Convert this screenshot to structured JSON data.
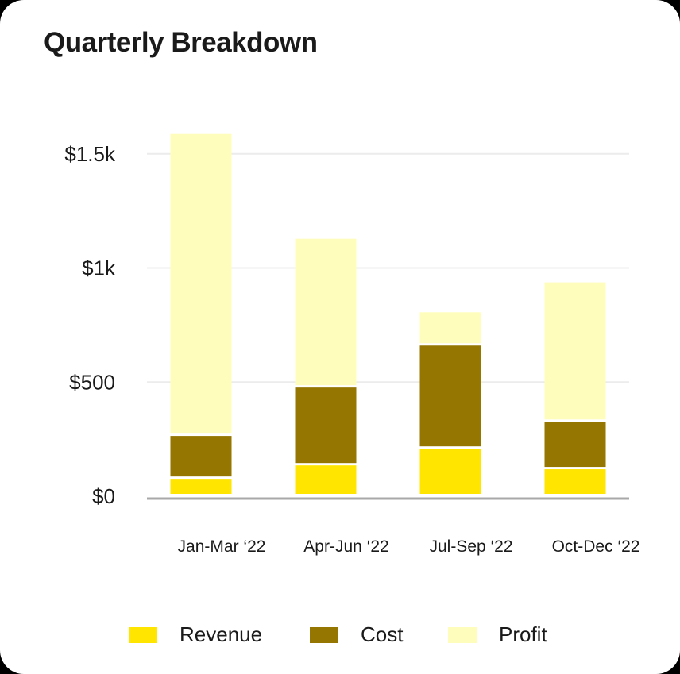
{
  "chart_data": {
    "type": "bar",
    "stacked": true,
    "title": "Quarterly Breakdown",
    "categories": [
      "Jan-Mar ‘22",
      "Apr-Jun ‘22",
      "Jul-Sep ‘22",
      "Oct-Dec ‘22"
    ],
    "series": [
      {
        "name": "Revenue",
        "color": "#FFE500",
        "values": [
          76,
          135,
          208,
          118
        ]
      },
      {
        "name": "Cost",
        "color": "#947600",
        "values": [
          188,
          341,
          452,
          208
        ]
      },
      {
        "name": "Profit",
        "color": "#FFFDBB",
        "values": [
          1323,
          652,
          146,
          611
        ]
      }
    ],
    "yticks": [
      0,
      500,
      1000,
      1500
    ],
    "ytick_labels": [
      "$0",
      "$500",
      "$1k",
      "$1.5k"
    ],
    "ylim": [
      0,
      1600
    ],
    "grid": true,
    "legend": "bottom",
    "xlabel": "",
    "ylabel": ""
  }
}
